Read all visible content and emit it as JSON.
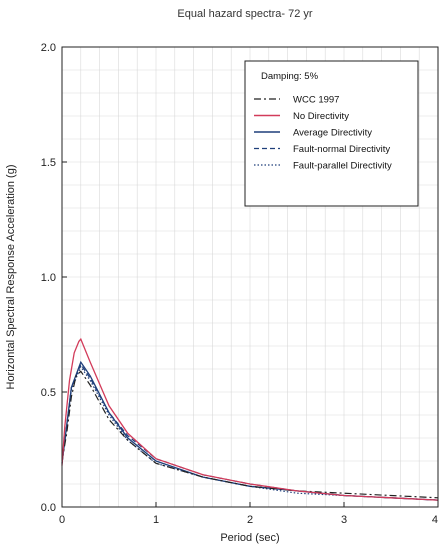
{
  "chart_data": {
    "type": "line",
    "title": "Equal hazard spectra- 72 yr",
    "xlabel": "Period (sec)",
    "ylabel": "Horizontal Spectral Response Acceleration (g)",
    "xlim": [
      0,
      4
    ],
    "ylim": [
      0,
      2.0
    ],
    "x_ticks": [
      "0",
      "1",
      "2",
      "3",
      "4"
    ],
    "y_ticks": [
      "0.0",
      "0.5",
      "1.0",
      "1.5",
      "2.0"
    ],
    "grid": true,
    "legend_position": "top-right",
    "legend_title": "Damping: 5%",
    "series": [
      {
        "name": "WCC 1997",
        "color": "#222222",
        "dash": "dashdot",
        "x": [
          0.0,
          0.05,
          0.1,
          0.15,
          0.2,
          0.3,
          0.5,
          0.7,
          1.0,
          1.5,
          2.0,
          2.5,
          3.0,
          3.5,
          4.0
        ],
        "y": [
          0.2,
          0.32,
          0.48,
          0.57,
          0.59,
          0.53,
          0.38,
          0.29,
          0.19,
          0.13,
          0.09,
          0.07,
          0.06,
          0.05,
          0.04
        ]
      },
      {
        "name": "No Directivity",
        "color": "#d23b5a",
        "dash": "solid",
        "x": [
          0.0,
          0.03,
          0.08,
          0.13,
          0.18,
          0.2,
          0.3,
          0.5,
          0.7,
          1.0,
          1.5,
          2.0,
          2.5,
          3.0,
          3.5,
          4.0
        ],
        "y": [
          0.18,
          0.35,
          0.55,
          0.67,
          0.72,
          0.73,
          0.63,
          0.44,
          0.32,
          0.21,
          0.14,
          0.1,
          0.07,
          0.05,
          0.04,
          0.03
        ]
      },
      {
        "name": "Average Directivity",
        "color": "#1f3f7a",
        "dash": "solid",
        "x": [
          0.0,
          0.1,
          0.2,
          0.3,
          0.5,
          0.7,
          1.0,
          1.5,
          2.0,
          2.5,
          3.0,
          3.5,
          4.0
        ],
        "y": [
          0.19,
          0.52,
          0.63,
          0.57,
          0.41,
          0.3,
          0.2,
          0.13,
          0.09,
          0.07,
          0.05,
          0.04,
          0.03
        ]
      },
      {
        "name": "Fault-normal Directivity",
        "color": "#1f3f7a",
        "dash": "dashed",
        "x": [
          0.0,
          0.1,
          0.2,
          0.3,
          0.5,
          0.7,
          1.0,
          1.5,
          2.0,
          2.5,
          3.0,
          3.5,
          4.0
        ],
        "y": [
          0.19,
          0.52,
          0.62,
          0.56,
          0.41,
          0.31,
          0.21,
          0.14,
          0.1,
          0.07,
          0.05,
          0.04,
          0.03
        ]
      },
      {
        "name": "Fault-parallel Directivity",
        "color": "#1f3f7a",
        "dash": "dotted",
        "x": [
          0.0,
          0.1,
          0.2,
          0.3,
          0.5,
          0.7,
          1.0,
          1.5,
          2.0,
          2.5,
          3.0,
          3.5,
          4.0
        ],
        "y": [
          0.19,
          0.51,
          0.61,
          0.55,
          0.4,
          0.29,
          0.19,
          0.13,
          0.09,
          0.06,
          0.05,
          0.04,
          0.03
        ]
      }
    ]
  }
}
